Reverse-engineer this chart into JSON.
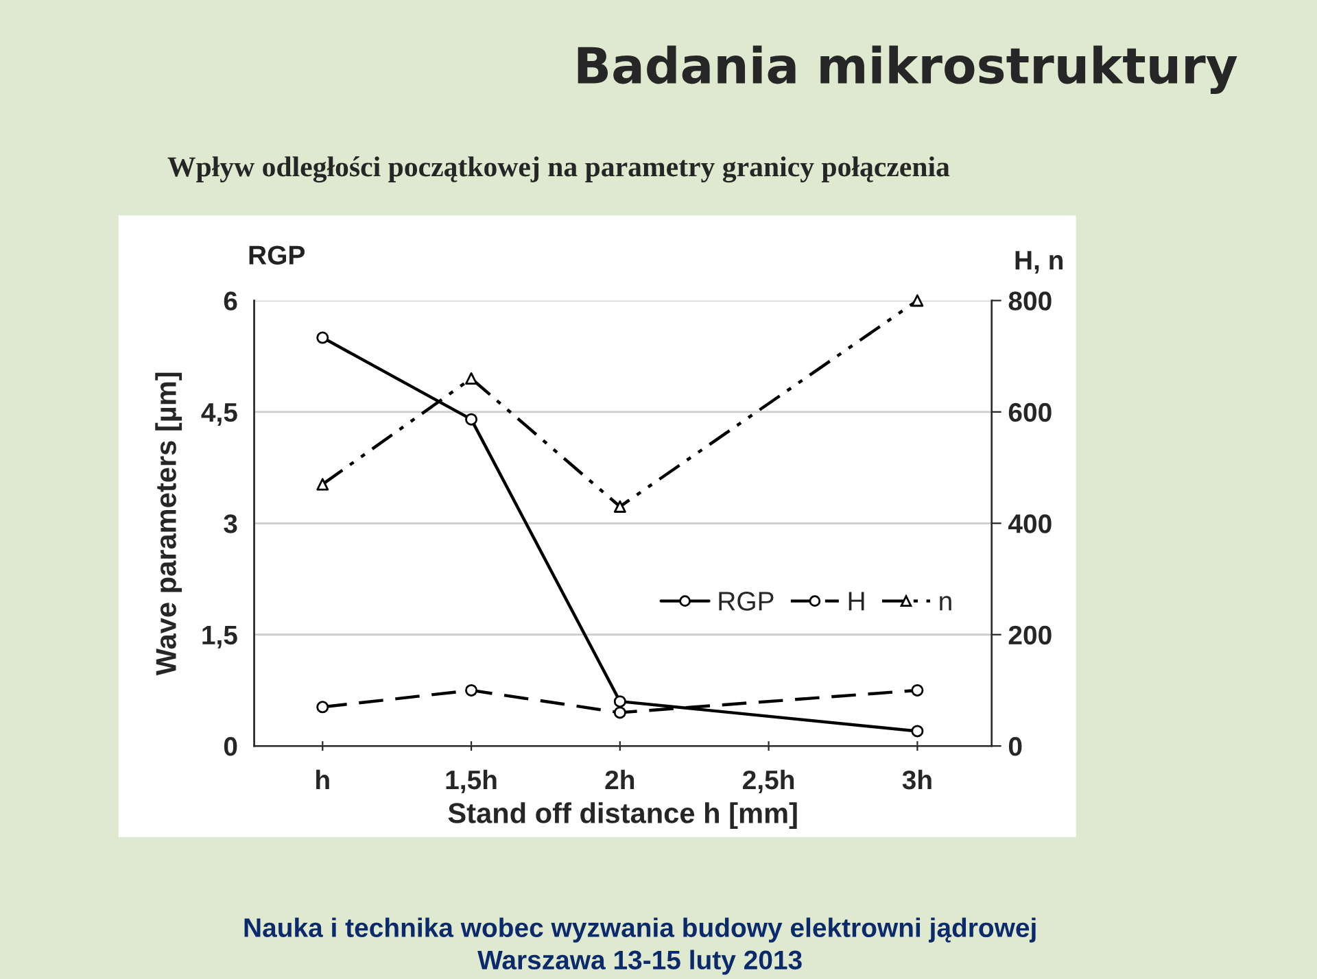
{
  "chart_data": {
    "type": "line",
    "title": "Badania mikrostruktury",
    "subtitle": "Wpływ odległości początkowej na parametry granicy połączenia",
    "xlabel": "Stand off distance h [mm]",
    "ylabel": "Wave parameters [µm]",
    "y2label": "H, n",
    "annotations": [
      "RGP",
      "Nauka i technika wobec wyzwania budowy elektrowni jądrowej",
      "Warszawa 13-15 luty 2013"
    ],
    "x": [
      1,
      1.5,
      2,
      3
    ],
    "series": [
      {
        "name": "RGP",
        "color": "#000000",
        "values": [
          5.5,
          4.4,
          0.6,
          0.2
        ],
        "marker": "circle",
        "line_style": "solid"
      },
      {
        "name": "H",
        "color": "#000000",
        "values": [
          70,
          100,
          60,
          100
        ],
        "axis": "y2",
        "marker": "circle",
        "line_style": "dashed"
      },
      {
        "name": "n",
        "color": "#000000",
        "values": [
          470,
          660,
          430,
          800
        ],
        "axis": "y2",
        "marker": "triangle",
        "line_style": "dashdot"
      }
    ],
    "xlim": [
      0.77,
      3.25
    ],
    "xticks": [
      {
        "value": 1,
        "label": "h"
      },
      {
        "value": 1.5,
        "label": "1,5h"
      },
      {
        "value": 2,
        "label": "2h"
      },
      {
        "value": 2.5,
        "label": "2,5h"
      },
      {
        "value": 3,
        "label": "3h"
      }
    ],
    "ylim": [
      0,
      6
    ],
    "yticks": [
      0,
      {
        "value": 1.5,
        "label": "1,5"
      },
      3,
      {
        "value": 4.5,
        "label": "4,5"
      },
      6
    ],
    "y2lim": [
      0,
      800
    ],
    "y2ticks": [
      0,
      200,
      400,
      600,
      800
    ],
    "grid": "y",
    "legend": "right"
  }
}
